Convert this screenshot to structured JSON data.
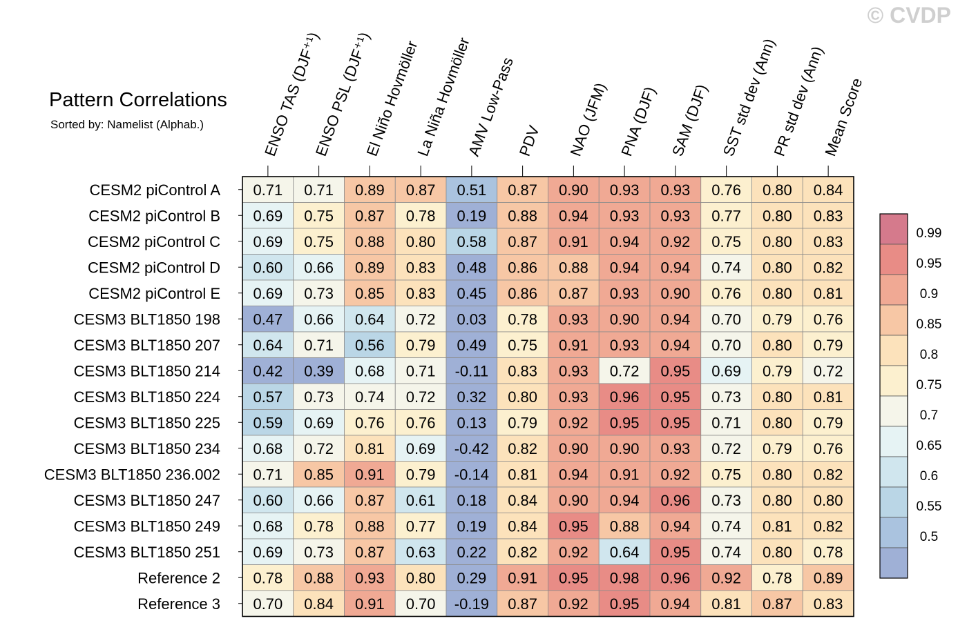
{
  "watermark": "© CVDP",
  "chart_data": {
    "type": "heatmap",
    "title": "Pattern Correlations",
    "subtitle": "Sorted by: Namelist (Alphab.)",
    "columns": [
      "ENSO TAS (DJF⁺¹)",
      "ENSO PSL (DJF⁺¹)",
      "El Niño Hovmöller",
      "La Niña Hovmöller",
      "AMV Low-Pass",
      "PDV",
      "NAO (JFM)",
      "PNA (DJF)",
      "SAM (DJF)",
      "SST std dev (Ann)",
      "PR std dev (Ann)",
      "Mean Score"
    ],
    "rows": [
      "CESM2 piControl A",
      "CESM2 piControl B",
      "CESM2 piControl C",
      "CESM2 piControl D",
      "CESM2 piControl E",
      "CESM3 BLT1850 198",
      "CESM3 BLT1850 207",
      "CESM3 BLT1850 214",
      "CESM3 BLT1850 224",
      "CESM3 BLT1850 225",
      "CESM3 BLT1850 234",
      "CESM3 BLT1850 236.002",
      "CESM3 BLT1850 247",
      "CESM3 BLT1850 249",
      "CESM3 BLT1850 251",
      "Reference 2",
      "Reference 3"
    ],
    "values": [
      [
        "0.71",
        "0.71",
        "0.89",
        "0.87",
        "0.51",
        "0.87",
        "0.90",
        "0.93",
        "0.93",
        "0.76",
        "0.80",
        "0.84"
      ],
      [
        "0.69",
        "0.75",
        "0.87",
        "0.78",
        "0.19",
        "0.88",
        "0.94",
        "0.93",
        "0.93",
        "0.77",
        "0.80",
        "0.83"
      ],
      [
        "0.69",
        "0.75",
        "0.88",
        "0.80",
        "0.58",
        "0.87",
        "0.91",
        "0.94",
        "0.92",
        "0.75",
        "0.80",
        "0.83"
      ],
      [
        "0.60",
        "0.66",
        "0.89",
        "0.83",
        "0.48",
        "0.86",
        "0.88",
        "0.94",
        "0.94",
        "0.74",
        "0.80",
        "0.82"
      ],
      [
        "0.69",
        "0.73",
        "0.85",
        "0.83",
        "0.45",
        "0.86",
        "0.87",
        "0.93",
        "0.90",
        "0.76",
        "0.80",
        "0.81"
      ],
      [
        "0.47",
        "0.66",
        "0.64",
        "0.72",
        "0.03",
        "0.78",
        "0.93",
        "0.90",
        "0.94",
        "0.70",
        "0.79",
        "0.76"
      ],
      [
        "0.64",
        "0.71",
        "0.56",
        "0.79",
        "0.49",
        "0.75",
        "0.91",
        "0.93",
        "0.94",
        "0.70",
        "0.80",
        "0.79"
      ],
      [
        "0.42",
        "0.39",
        "0.68",
        "0.71",
        "-0.11",
        "0.83",
        "0.93",
        "0.72",
        "0.95",
        "0.69",
        "0.79",
        "0.72"
      ],
      [
        "0.57",
        "0.73",
        "0.74",
        "0.72",
        "0.32",
        "0.80",
        "0.93",
        "0.96",
        "0.95",
        "0.73",
        "0.80",
        "0.81"
      ],
      [
        "0.59",
        "0.69",
        "0.76",
        "0.76",
        "0.13",
        "0.79",
        "0.92",
        "0.95",
        "0.95",
        "0.71",
        "0.80",
        "0.79"
      ],
      [
        "0.68",
        "0.72",
        "0.81",
        "0.69",
        "-0.42",
        "0.82",
        "0.90",
        "0.90",
        "0.93",
        "0.72",
        "0.79",
        "0.76"
      ],
      [
        "0.71",
        "0.85",
        "0.91",
        "0.79",
        "-0.14",
        "0.81",
        "0.94",
        "0.91",
        "0.92",
        "0.75",
        "0.80",
        "0.82"
      ],
      [
        "0.60",
        "0.66",
        "0.87",
        "0.61",
        "0.18",
        "0.84",
        "0.90",
        "0.94",
        "0.96",
        "0.73",
        "0.80",
        "0.80"
      ],
      [
        "0.68",
        "0.78",
        "0.88",
        "0.77",
        "0.19",
        "0.84",
        "0.95",
        "0.88",
        "0.94",
        "0.74",
        "0.81",
        "0.82"
      ],
      [
        "0.69",
        "0.73",
        "0.87",
        "0.63",
        "0.22",
        "0.82",
        "0.92",
        "0.64",
        "0.95",
        "0.74",
        "0.80",
        "0.78"
      ],
      [
        "0.78",
        "0.88",
        "0.93",
        "0.80",
        "0.29",
        "0.91",
        "0.95",
        "0.98",
        "0.96",
        "0.92",
        "0.78",
        "0.89"
      ],
      [
        "0.70",
        "0.84",
        "0.91",
        "0.70",
        "-0.19",
        "0.87",
        "0.92",
        "0.95",
        "0.94",
        "0.81",
        "0.87",
        "0.83"
      ]
    ],
    "colorbar": {
      "levels": [
        "0.99",
        "0.95",
        "0.9",
        "0.85",
        "0.8",
        "0.75",
        "0.7",
        "0.65",
        "0.6",
        "0.55",
        "0.5"
      ],
      "thresholds": [
        0.5,
        0.55,
        0.6,
        0.65,
        0.7,
        0.75,
        0.8,
        0.85,
        0.9,
        0.95,
        0.99
      ],
      "colors": [
        "#9fb0d6",
        "#aac3df",
        "#bad6e6",
        "#d0e6ee",
        "#e6f3f4",
        "#f5f5ea",
        "#fcf0cf",
        "#fce2bb",
        "#f7c7a5",
        "#f0a994",
        "#e88c86",
        "#d57a8c"
      ]
    }
  }
}
